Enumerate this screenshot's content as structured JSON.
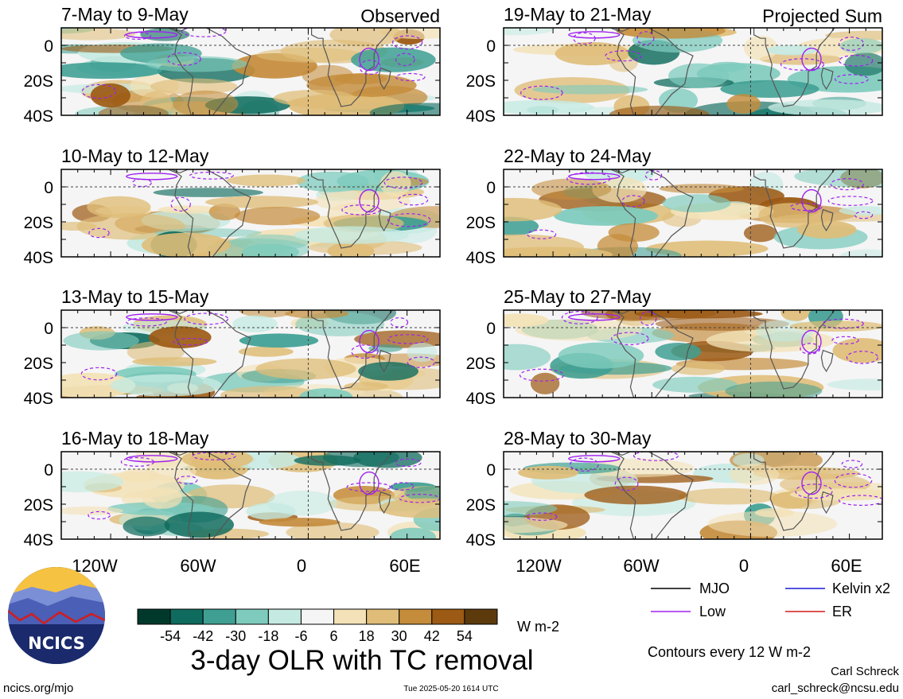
{
  "chart_data": {
    "type": "heatmap",
    "title": "3-day OLR with TC removal",
    "variable": "OLR anomaly",
    "units": "W m-2",
    "columns": [
      {
        "tag": "Observed",
        "panels": [
          "7-May to 9-May",
          "10-May to 12-May",
          "13-May to 15-May",
          "16-May to 18-May"
        ]
      },
      {
        "tag": "Projected Sum",
        "panels": [
          "19-May to 21-May",
          "22-May to 24-May",
          "25-May to 27-May",
          "28-May to 30-May"
        ]
      }
    ],
    "y_ticks": [
      "0",
      "20S",
      "40S"
    ],
    "x_ticks": [
      "120W",
      "60W",
      "0",
      "60E"
    ],
    "colorbar": {
      "labels": [
        "-54",
        "-42",
        "-30",
        "-18",
        "-6",
        "6",
        "18",
        "30",
        "42",
        "54"
      ],
      "colors": [
        "#00392b",
        "#0f6b5e",
        "#3f9f93",
        "#7ecbbd",
        "#c5eae2",
        "#f5f5f5",
        "#f3e2b7",
        "#dfbd78",
        "#c58c3b",
        "#9c5a14",
        "#5c3a0c"
      ]
    },
    "legend": [
      {
        "label": "MJO",
        "color": "#000000"
      },
      {
        "label": "Kelvin x2",
        "color": "#1c1cd6"
      },
      {
        "label": "Low",
        "color": "#a020f0"
      },
      {
        "label": "ER",
        "color": "#d41c1c"
      }
    ],
    "contour_note": "Contours every 12 W m-2"
  },
  "footer": {
    "logo_text": "NCICS",
    "url": "ncics.org/mjo",
    "timestamp": "Tue 2025-05-20 1614 UTC",
    "author": "Carl Schreck",
    "email": "carl_schreck@ncsu.edu"
  }
}
